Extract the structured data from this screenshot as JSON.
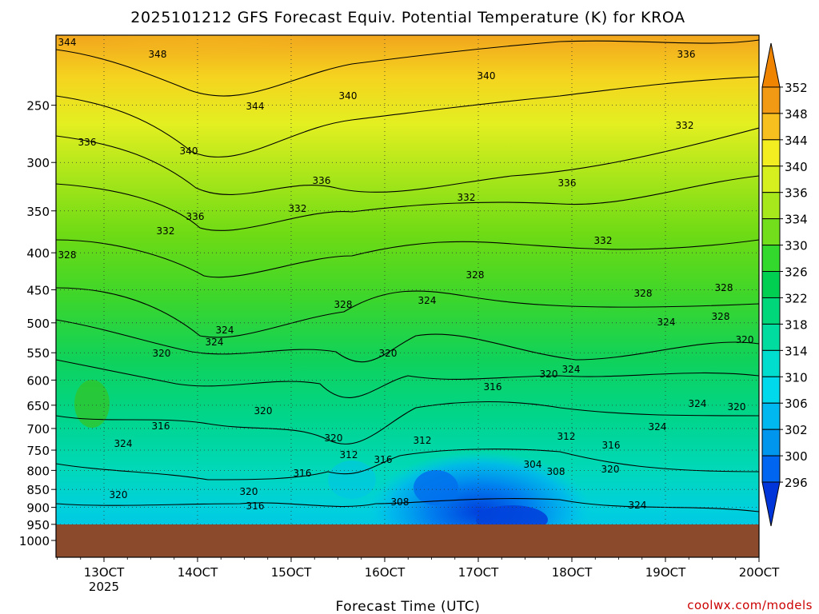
{
  "chart_data": {
    "type": "heatmap",
    "title": "2025101212 GFS Forecast Equiv. Potential Temperature (K) for KROA",
    "xlabel": "Forecast Time (UTC)",
    "ylabel": "",
    "x_ticks": [
      "13OCT",
      "14OCT",
      "15OCT",
      "16OCT",
      "17OCT",
      "18OCT",
      "19OCT",
      "20OCT"
    ],
    "x_year": "2025",
    "y_ticks": [
      250,
      300,
      350,
      400,
      450,
      500,
      550,
      600,
      650,
      700,
      750,
      800,
      850,
      900,
      950,
      1000
    ],
    "y_scale": "log",
    "y_reversed": true,
    "ylim": [
      1000,
      200
    ],
    "grid": true,
    "colorbar": {
      "labels": [
        296,
        300,
        302,
        306,
        310,
        314,
        318,
        322,
        326,
        330,
        334,
        336,
        340,
        344,
        348,
        352
      ],
      "colors": [
        "#0036d9",
        "#0066f2",
        "#0096ee",
        "#00b8f0",
        "#00d9ec",
        "#00ddcf",
        "#00dba0",
        "#00d77a",
        "#00cf52",
        "#33d92c",
        "#73de1c",
        "#a6e81c",
        "#d6f01f",
        "#f2ee22",
        "#f7c01e",
        "#f29a13",
        "#ef8400"
      ]
    },
    "contour_labels": [
      {
        "text": "344"
      },
      {
        "text": "348"
      },
      {
        "text": "340"
      },
      {
        "text": "344"
      },
      {
        "text": "340"
      },
      {
        "text": "336"
      },
      {
        "text": "340"
      },
      {
        "text": "336"
      },
      {
        "text": "336"
      },
      {
        "text": "336"
      },
      {
        "text": "332"
      },
      {
        "text": "332"
      },
      {
        "text": "336"
      },
      {
        "text": "332"
      },
      {
        "text": "332"
      },
      {
        "text": "332"
      },
      {
        "text": "328"
      },
      {
        "text": "328"
      },
      {
        "text": "328"
      },
      {
        "text": "324"
      },
      {
        "text": "328"
      },
      {
        "text": "328"
      },
      {
        "text": "324"
      },
      {
        "text": "324"
      },
      {
        "text": "324"
      },
      {
        "text": "320"
      },
      {
        "text": "320"
      },
      {
        "text": "320"
      },
      {
        "text": "324"
      },
      {
        "text": "316"
      },
      {
        "text": "316"
      },
      {
        "text": "320"
      },
      {
        "text": "324"
      },
      {
        "text": "320"
      },
      {
        "text": "312"
      },
      {
        "text": "312"
      },
      {
        "text": "316"
      },
      {
        "text": "320"
      },
      {
        "text": "316"
      },
      {
        "text": "312"
      },
      {
        "text": "316"
      },
      {
        "text": "308"
      },
      {
        "text": "304"
      },
      {
        "text": "308"
      },
      {
        "text": "320"
      },
      {
        "text": "324"
      },
      {
        "text": "320"
      },
      {
        "text": "316"
      },
      {
        "text": "324"
      },
      {
        "text": "320"
      },
      {
        "text": "324"
      },
      {
        "text": "328"
      },
      {
        "text": "320"
      }
    ]
  },
  "colors": {
    "ground": "#8b4a2c",
    "credit": "#cc0000"
  },
  "credit": "coolwx.com/models"
}
